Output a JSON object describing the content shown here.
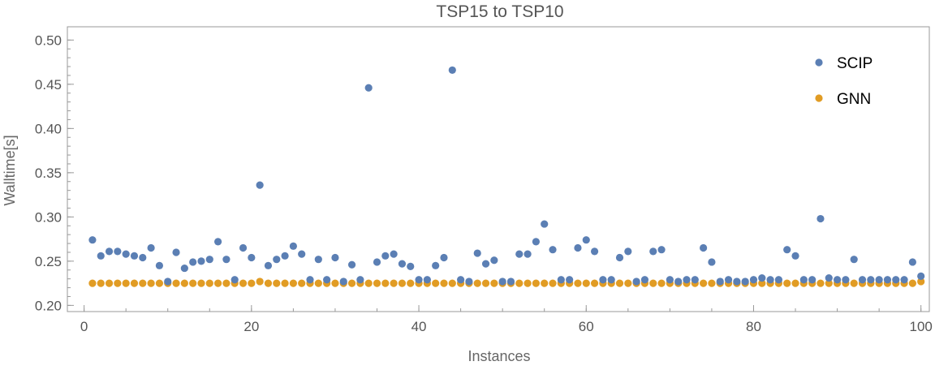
{
  "chart_data": {
    "type": "scatter",
    "title": "TSP15 to TSP10",
    "xlabel": "Instances",
    "ylabel": "Walltime[s]",
    "xlim": [
      -2,
      101
    ],
    "ylim": [
      0.193,
      0.515
    ],
    "xticks": [
      "0",
      "20",
      "40",
      "60",
      "80",
      "100"
    ],
    "yticks": [
      "0.20",
      "0.25",
      "0.30",
      "0.35",
      "0.40",
      "0.45",
      "0.50"
    ],
    "legend_position": "top-right",
    "grid": false,
    "series": [
      {
        "name": "SCIP",
        "color": "#5b7fb4",
        "x": [
          1,
          2,
          3,
          4,
          5,
          6,
          7,
          8,
          9,
          10,
          11,
          12,
          13,
          14,
          15,
          16,
          17,
          18,
          19,
          20,
          21,
          22,
          23,
          24,
          25,
          26,
          27,
          28,
          29,
          30,
          31,
          32,
          33,
          34,
          35,
          36,
          37,
          38,
          39,
          40,
          41,
          42,
          43,
          44,
          45,
          46,
          47,
          48,
          49,
          50,
          51,
          52,
          53,
          54,
          55,
          56,
          57,
          58,
          59,
          60,
          61,
          62,
          63,
          64,
          65,
          66,
          67,
          68,
          69,
          70,
          71,
          72,
          73,
          74,
          75,
          76,
          77,
          78,
          79,
          80,
          81,
          82,
          83,
          84,
          85,
          86,
          87,
          88,
          89,
          90,
          91,
          92,
          93,
          94,
          95,
          96,
          97,
          98,
          99,
          100
        ],
        "y": [
          0.274,
          0.256,
          0.261,
          0.261,
          0.258,
          0.256,
          0.254,
          0.265,
          0.245,
          0.227,
          0.26,
          0.242,
          0.249,
          0.25,
          0.252,
          0.272,
          0.252,
          0.229,
          0.265,
          0.254,
          0.336,
          0.245,
          0.252,
          0.256,
          0.267,
          0.258,
          0.229,
          0.252,
          0.229,
          0.254,
          0.227,
          0.246,
          0.229,
          0.446,
          0.249,
          0.256,
          0.258,
          0.247,
          0.244,
          0.229,
          0.229,
          0.245,
          0.254,
          0.466,
          0.229,
          0.227,
          0.259,
          0.247,
          0.251,
          0.227,
          0.227,
          0.258,
          0.258,
          0.272,
          0.292,
          0.263,
          0.229,
          0.229,
          0.265,
          0.274,
          0.261,
          0.229,
          0.229,
          0.254,
          0.261,
          0.227,
          0.229,
          0.261,
          0.263,
          0.229,
          0.227,
          0.229,
          0.229,
          0.265,
          0.249,
          0.227,
          0.229,
          0.227,
          0.227,
          0.229,
          0.231,
          0.229,
          0.229,
          0.263,
          0.256,
          0.229,
          0.229,
          0.298,
          0.231,
          0.229,
          0.229,
          0.252,
          0.229,
          0.229,
          0.229,
          0.229,
          0.229,
          0.229,
          0.249,
          0.233
        ]
      },
      {
        "name": "GNN",
        "color": "#e19c24",
        "x": [
          1,
          2,
          3,
          4,
          5,
          6,
          7,
          8,
          9,
          10,
          11,
          12,
          13,
          14,
          15,
          16,
          17,
          18,
          19,
          20,
          21,
          22,
          23,
          24,
          25,
          26,
          27,
          28,
          29,
          30,
          31,
          32,
          33,
          34,
          35,
          36,
          37,
          38,
          39,
          40,
          41,
          42,
          43,
          44,
          45,
          46,
          47,
          48,
          49,
          50,
          51,
          52,
          53,
          54,
          55,
          56,
          57,
          58,
          59,
          60,
          61,
          62,
          63,
          64,
          65,
          66,
          67,
          68,
          69,
          70,
          71,
          72,
          73,
          74,
          75,
          76,
          77,
          78,
          79,
          80,
          81,
          82,
          83,
          84,
          85,
          86,
          87,
          88,
          89,
          90,
          91,
          92,
          93,
          94,
          95,
          96,
          97,
          98,
          99,
          100
        ],
        "y": [
          0.225,
          0.225,
          0.225,
          0.225,
          0.225,
          0.225,
          0.225,
          0.225,
          0.225,
          0.225,
          0.225,
          0.225,
          0.225,
          0.225,
          0.225,
          0.225,
          0.225,
          0.225,
          0.225,
          0.225,
          0.227,
          0.225,
          0.225,
          0.225,
          0.225,
          0.225,
          0.225,
          0.225,
          0.225,
          0.225,
          0.225,
          0.225,
          0.225,
          0.225,
          0.225,
          0.225,
          0.225,
          0.225,
          0.225,
          0.225,
          0.225,
          0.225,
          0.225,
          0.225,
          0.225,
          0.225,
          0.225,
          0.225,
          0.225,
          0.225,
          0.225,
          0.225,
          0.225,
          0.225,
          0.225,
          0.225,
          0.225,
          0.225,
          0.225,
          0.225,
          0.225,
          0.225,
          0.225,
          0.225,
          0.225,
          0.225,
          0.225,
          0.225,
          0.225,
          0.225,
          0.225,
          0.225,
          0.225,
          0.225,
          0.225,
          0.225,
          0.225,
          0.225,
          0.225,
          0.225,
          0.225,
          0.225,
          0.225,
          0.225,
          0.225,
          0.225,
          0.225,
          0.225,
          0.225,
          0.225,
          0.225,
          0.225,
          0.225,
          0.225,
          0.225,
          0.225,
          0.225,
          0.225,
          0.225,
          0.227
        ]
      }
    ]
  }
}
